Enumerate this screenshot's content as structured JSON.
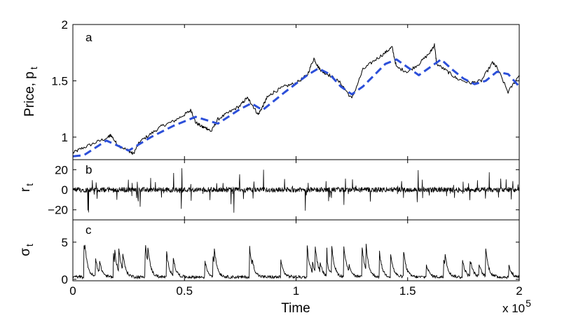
{
  "chart_data": [
    {
      "type": "line",
      "panel_letter": "a",
      "ylabel_main": "Price, p",
      "ylabel_sub": "t",
      "ylim": [
        0.8,
        2.0
      ],
      "yticks": [
        1,
        1.5,
        2
      ],
      "yticklabels": [
        "1",
        "1.5",
        "2"
      ],
      "xlim": [
        0,
        200000
      ],
      "series": [
        {
          "style": "solid",
          "color": "#000000",
          "x": [
            0,
            4000,
            10000,
            16000,
            17000,
            20000,
            25000,
            27000,
            30000,
            35000,
            40000,
            45000,
            50000,
            53000,
            55000,
            58000,
            60000,
            62000,
            65000,
            70000,
            75000,
            78000,
            80000,
            83000,
            85000,
            87000,
            90000,
            95000,
            100000,
            105000,
            108000,
            110000,
            112000,
            115000,
            120000,
            125000,
            130000,
            135000,
            140000,
            143000,
            145000,
            150000,
            155000,
            160000,
            162000,
            163000,
            168000,
            172000,
            178000,
            183000,
            188000,
            190000,
            195000,
            200000
          ],
          "y": [
            0.86,
            0.9,
            0.95,
            1.0,
            1.02,
            0.93,
            0.88,
            0.85,
            0.96,
            1.03,
            1.1,
            1.14,
            1.2,
            1.24,
            1.13,
            1.09,
            1.08,
            1.05,
            1.16,
            1.22,
            1.28,
            1.35,
            1.3,
            1.2,
            1.27,
            1.35,
            1.4,
            1.45,
            1.48,
            1.55,
            1.7,
            1.62,
            1.58,
            1.55,
            1.48,
            1.34,
            1.6,
            1.68,
            1.75,
            1.8,
            1.62,
            1.58,
            1.65,
            1.75,
            1.82,
            1.65,
            1.58,
            1.52,
            1.48,
            1.5,
            1.66,
            1.62,
            1.4,
            1.55
          ]
        },
        {
          "style": "dashed",
          "color": "#2c4fd9",
          "x": [
            0,
            5000,
            15000,
            25000,
            35000,
            45000,
            55000,
            60000,
            65000,
            75000,
            80000,
            85000,
            95000,
            105000,
            110000,
            115000,
            120000,
            125000,
            130000,
            135000,
            140000,
            145000,
            150000,
            155000,
            160000,
            165000,
            170000,
            175000,
            180000,
            185000,
            190000,
            195000,
            200000
          ],
          "y": [
            0.83,
            0.84,
            0.97,
            0.88,
            1.0,
            1.1,
            1.18,
            1.15,
            1.12,
            1.25,
            1.3,
            1.24,
            1.4,
            1.55,
            1.61,
            1.56,
            1.45,
            1.38,
            1.45,
            1.55,
            1.65,
            1.69,
            1.62,
            1.55,
            1.62,
            1.69,
            1.6,
            1.52,
            1.47,
            1.5,
            1.58,
            1.56,
            1.45
          ]
        }
      ]
    },
    {
      "type": "line",
      "panel_letter": "b",
      "ylabel_main": "r",
      "ylabel_sub": "t",
      "ylim": [
        -30,
        30
      ],
      "yticks": [
        -20,
        0,
        20
      ],
      "yticklabels": [
        "−20",
        "0",
        "20"
      ],
      "xlim": [
        0,
        200000
      ]
    },
    {
      "type": "line",
      "panel_letter": "c",
      "ylabel_main": "σ",
      "ylabel_sub": "t",
      "ylim": [
        -0.2,
        8
      ],
      "yticks": [
        0,
        5
      ],
      "yticklabels": [
        "0",
        "5"
      ],
      "xlim": [
        0,
        200000
      ],
      "xticks": [
        0,
        50000,
        100000,
        150000,
        200000
      ],
      "xticklabels": [
        "0",
        "0.5",
        "1",
        "1.5",
        "2"
      ],
      "xlabel": "Time",
      "xscale_main": "x 10",
      "xscale_exp": "5"
    }
  ]
}
